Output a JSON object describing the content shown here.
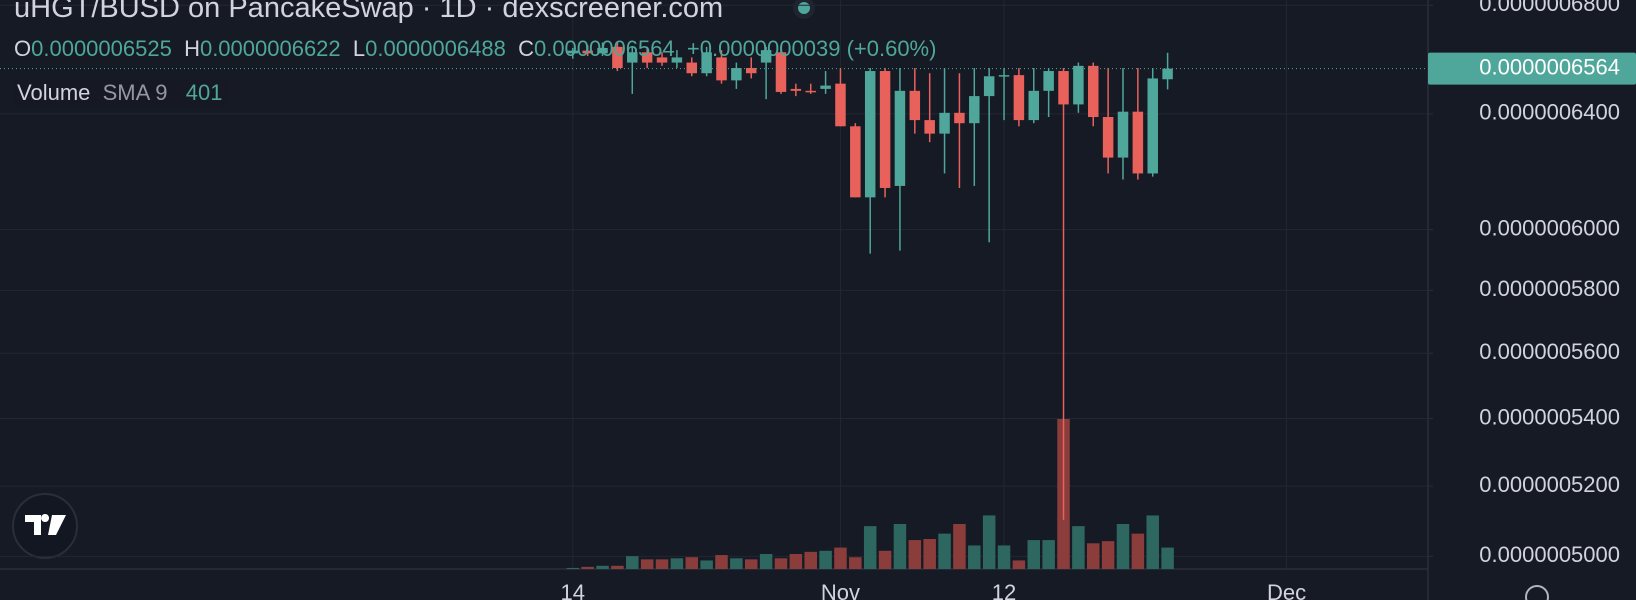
{
  "chart_data": {
    "type": "candlestick",
    "title": "uHGT/BUSD on PancakeSwap · 1D · dexscreener.com",
    "ohlc_legend": {
      "o_label": "O",
      "o": "0.0000006525",
      "h_label": "H",
      "h": "0.0000006622",
      "l_label": "L",
      "l": "0.0000006488",
      "c_label": "C",
      "c": "0.0000006564",
      "change": "+0.0000000039 (+0.60%)"
    },
    "volume_legend": {
      "name": "Volume",
      "indicator": "SMA 9",
      "value": 401
    },
    "last_price_label": "0.0000006564",
    "categories": [
      "14",
      null,
      null,
      null,
      null,
      null,
      null,
      null,
      null,
      null,
      null,
      null,
      null,
      null,
      null,
      null,
      null,
      null,
      "Nov",
      null,
      null,
      null,
      null,
      null,
      null,
      null,
      null,
      null,
      null,
      "12",
      null,
      null,
      null,
      null,
      null,
      null,
      null,
      null,
      null,
      null,
      null,
      null,
      null,
      null,
      null,
      null,
      null,
      null,
      "Dec"
    ],
    "open": [
      6.62e-07,
      6.63e-07,
      6.62e-07,
      6.644e-07,
      6.586e-07,
      6.624e-07,
      6.605e-07,
      6.586e-07,
      6.586e-07,
      6.547e-07,
      6.605e-07,
      6.521e-07,
      6.566e-07,
      6.586e-07,
      6.624e-07,
      6.49e-07,
      6.483e-07,
      6.49e-07,
      6.509e-07,
      6.356e-07,
      6.109e-07,
      6.555e-07,
      6.148e-07,
      6.483e-07,
      6.378e-07,
      6.33e-07,
      6.404e-07,
      6.367e-07,
      6.464e-07,
      6.536e-07,
      6.54e-07,
      6.378e-07,
      6.483e-07,
      6.555e-07,
      6.434e-07,
      6.574e-07,
      6.389e-07,
      6.246e-07,
      6.408e-07,
      6.191e-07,
      6.525e-07,
      null,
      null,
      null,
      null,
      null,
      null,
      null,
      null
    ],
    "high": [
      6.64e-07,
      6.65e-07,
      6.66e-07,
      6.663e-07,
      6.644e-07,
      6.644e-07,
      6.624e-07,
      6.632e-07,
      6.605e-07,
      6.644e-07,
      6.632e-07,
      6.586e-07,
      6.605e-07,
      6.644e-07,
      6.644e-07,
      6.509e-07,
      6.509e-07,
      6.555e-07,
      6.566e-07,
      6.367e-07,
      6.566e-07,
      6.566e-07,
      6.566e-07,
      6.566e-07,
      6.547e-07,
      6.566e-07,
      6.547e-07,
      6.566e-07,
      6.566e-07,
      6.566e-07,
      6.566e-07,
      6.566e-07,
      6.566e-07,
      6.566e-07,
      6.586e-07,
      6.586e-07,
      6.566e-07,
      6.566e-07,
      6.566e-07,
      6.566e-07,
      6.622e-07,
      null,
      null,
      null,
      null,
      null,
      null,
      null,
      null
    ],
    "low": [
      6.6e-07,
      6.61e-07,
      6.61e-07,
      6.555e-07,
      6.472e-07,
      6.566e-07,
      6.574e-07,
      6.566e-07,
      6.536e-07,
      6.536e-07,
      6.509e-07,
      6.49e-07,
      6.528e-07,
      6.453e-07,
      6.472e-07,
      6.464e-07,
      6.472e-07,
      6.472e-07,
      6.356e-07,
      6.109e-07,
      5.92e-07,
      6.109e-07,
      5.93e-07,
      6.33e-07,
      6.3e-07,
      6.191e-07,
      6.141e-07,
      6.148e-07,
      5.958e-07,
      6.378e-07,
      6.356e-07,
      6.367e-07,
      6.389e-07,
      5.103e-07,
      6.404e-07,
      6.356e-07,
      6.191e-07,
      6.17e-07,
      6.17e-07,
      6.18e-07,
      6.488e-07,
      null,
      null,
      null,
      null,
      null,
      null,
      null,
      null
    ],
    "close": [
      6.63e-07,
      6.62e-07,
      6.64e-07,
      6.566e-07,
      6.624e-07,
      6.586e-07,
      6.586e-07,
      6.605e-07,
      6.547e-07,
      6.624e-07,
      6.521e-07,
      6.566e-07,
      6.547e-07,
      6.632e-07,
      6.479e-07,
      6.483e-07,
      6.479e-07,
      6.502e-07,
      6.356e-07,
      6.109e-07,
      6.555e-07,
      6.141e-07,
      6.483e-07,
      6.378e-07,
      6.33e-07,
      6.404e-07,
      6.367e-07,
      6.464e-07,
      6.536e-07,
      6.54e-07,
      6.378e-07,
      6.483e-07,
      6.555e-07,
      6.434e-07,
      6.574e-07,
      6.389e-07,
      6.246e-07,
      6.408e-07,
      6.191e-07,
      6.528e-07,
      6.564e-07,
      null,
      null,
      null,
      null,
      null,
      null,
      null,
      null
    ],
    "volume": [
      10,
      20,
      30,
      30,
      120,
      90,
      90,
      100,
      110,
      80,
      130,
      100,
      90,
      140,
      100,
      140,
      160,
      170,
      200,
      110,
      400,
      170,
      420,
      270,
      280,
      330,
      420,
      220,
      500,
      220,
      80,
      270,
      270,
      1400,
      400,
      240,
      260,
      420,
      330,
      500,
      200,
      null,
      null,
      null,
      null,
      null,
      null,
      null,
      null
    ],
    "up_color": "#4fa69a",
    "down_color": "#e8625b",
    "up_volume_color": "#2d6760",
    "down_volume_color": "#8b3d3c",
    "ylim": [
      4.965e-07,
      6.82e-07
    ],
    "ylog": true,
    "yticks": [
      {
        "value": 6.8e-07,
        "label": "0.0000006800"
      },
      {
        "value": 6.4e-07,
        "label": "0.0000006400"
      },
      {
        "value": 6e-07,
        "label": "0.0000006000"
      },
      {
        "value": 5.8e-07,
        "label": "0.0000005800"
      },
      {
        "value": 5.6e-07,
        "label": "0.0000005600"
      },
      {
        "value": 5.4e-07,
        "label": "0.0000005400"
      },
      {
        "value": 5.2e-07,
        "label": "0.0000005200"
      },
      {
        "value": 5e-07,
        "label": "0.0000005000"
      }
    ],
    "grid": true
  }
}
